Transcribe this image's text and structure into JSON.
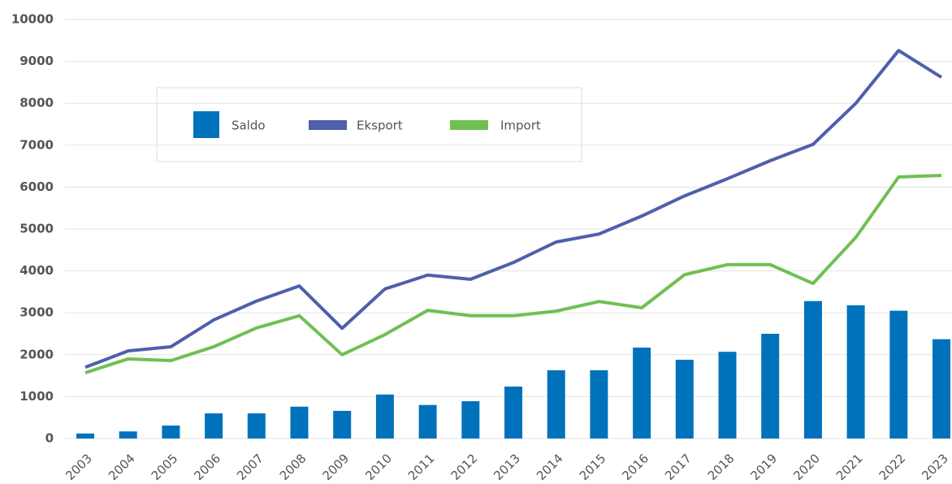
{
  "chart_data": {
    "type": "combo",
    "categories": [
      "2003",
      "2004",
      "2005",
      "2006",
      "2007",
      "2008",
      "2009",
      "2010",
      "2011",
      "2012",
      "2013",
      "2014",
      "2015",
      "2016",
      "2017",
      "2018",
      "2019",
      "2020",
      "2021",
      "2022",
      "2023"
    ],
    "series": [
      {
        "name": "Saldo",
        "type": "bar",
        "color": "#0072bc",
        "values": [
          120,
          170,
          310,
          600,
          600,
          760,
          660,
          1050,
          800,
          890,
          1240,
          1630,
          1630,
          2170,
          1880,
          2070,
          2500,
          3280,
          3180,
          3050,
          2370
        ]
      },
      {
        "name": "Eksport",
        "type": "line",
        "color": "#4f5fac",
        "values": [
          1700,
          2090,
          2190,
          2830,
          3280,
          3640,
          2630,
          3570,
          3900,
          3800,
          4200,
          4690,
          4880,
          5310,
          5790,
          6200,
          6630,
          7020,
          8000,
          9260,
          8620
        ]
      },
      {
        "name": "Import",
        "type": "line",
        "color": "#70bf54",
        "values": [
          1570,
          1900,
          1860,
          2190,
          2640,
          2930,
          2000,
          2480,
          3060,
          2930,
          2930,
          3040,
          3270,
          3120,
          3910,
          4150,
          4150,
          3700,
          4800,
          6240,
          6280
        ]
      }
    ],
    "ylim": [
      0,
      10000
    ],
    "yticks": [
      0,
      1000,
      2000,
      3000,
      4000,
      5000,
      6000,
      7000,
      8000,
      9000,
      10000
    ],
    "grid": true
  }
}
